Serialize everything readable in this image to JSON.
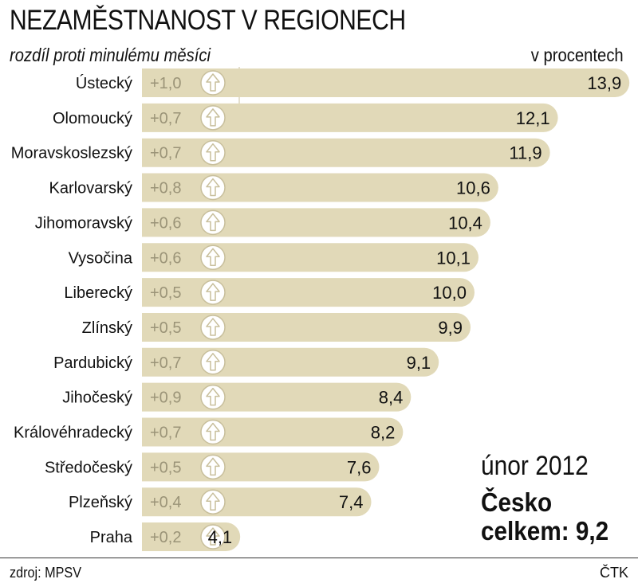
{
  "header": {
    "title": "NEZAMĚSTNANOST V REGIONECH",
    "subtitle": "rozdíl proti minulému měsíci",
    "unit": "v procentech"
  },
  "colors": {
    "bar": "#e1d9b8",
    "change_text": "#9b9478",
    "icon_fill": "#ffffff",
    "icon_stroke": "#c8bf9c",
    "text": "#111111"
  },
  "chart_data": {
    "type": "bar",
    "orientation": "horizontal",
    "title": "NEZAMĚSTNANOST V REGIONECH",
    "subtitle": "rozdíl proti minulému měsíci",
    "unit": "v procentech",
    "categories": [
      "Ústecký",
      "Olomoucký",
      "Moravskoslezský",
      "Karlovarský",
      "Jihomoravský",
      "Vysočina",
      "Liberecký",
      "Zlínský",
      "Pardubický",
      "Jihočeský",
      "Královéhradecký",
      "Středočeský",
      "Plzeňský",
      "Praha"
    ],
    "values": [
      13.9,
      12.1,
      11.9,
      10.6,
      10.4,
      10.1,
      10.0,
      9.9,
      9.1,
      8.4,
      8.2,
      7.6,
      7.4,
      4.1
    ],
    "value_labels": [
      "13,9",
      "12,1",
      "11,9",
      "10,6",
      "10,4",
      "10,1",
      "10,0",
      "9,9",
      "9,1",
      "8,4",
      "8,2",
      "7,6",
      "7,4",
      "4,1"
    ],
    "changes": [
      1.0,
      0.7,
      0.7,
      0.8,
      0.6,
      0.6,
      0.5,
      0.5,
      0.7,
      0.9,
      0.7,
      0.5,
      0.4,
      0.2
    ],
    "change_labels": [
      "+1,0",
      "+0,7",
      "+0,7",
      "+0,8",
      "+0,6",
      "+0,6",
      "+0,5",
      "+0,5",
      "+0,7",
      "+0,9",
      "+0,7",
      "+0,5",
      "+0,4",
      "+0,2"
    ],
    "change_direction": "up"
  },
  "annotation": {
    "period": "únor 2012",
    "total_line1": "Česko",
    "total_line2": "celkem: 9,2"
  },
  "footer": {
    "source": "zdroj: MPSV",
    "agency": "ČTK"
  }
}
